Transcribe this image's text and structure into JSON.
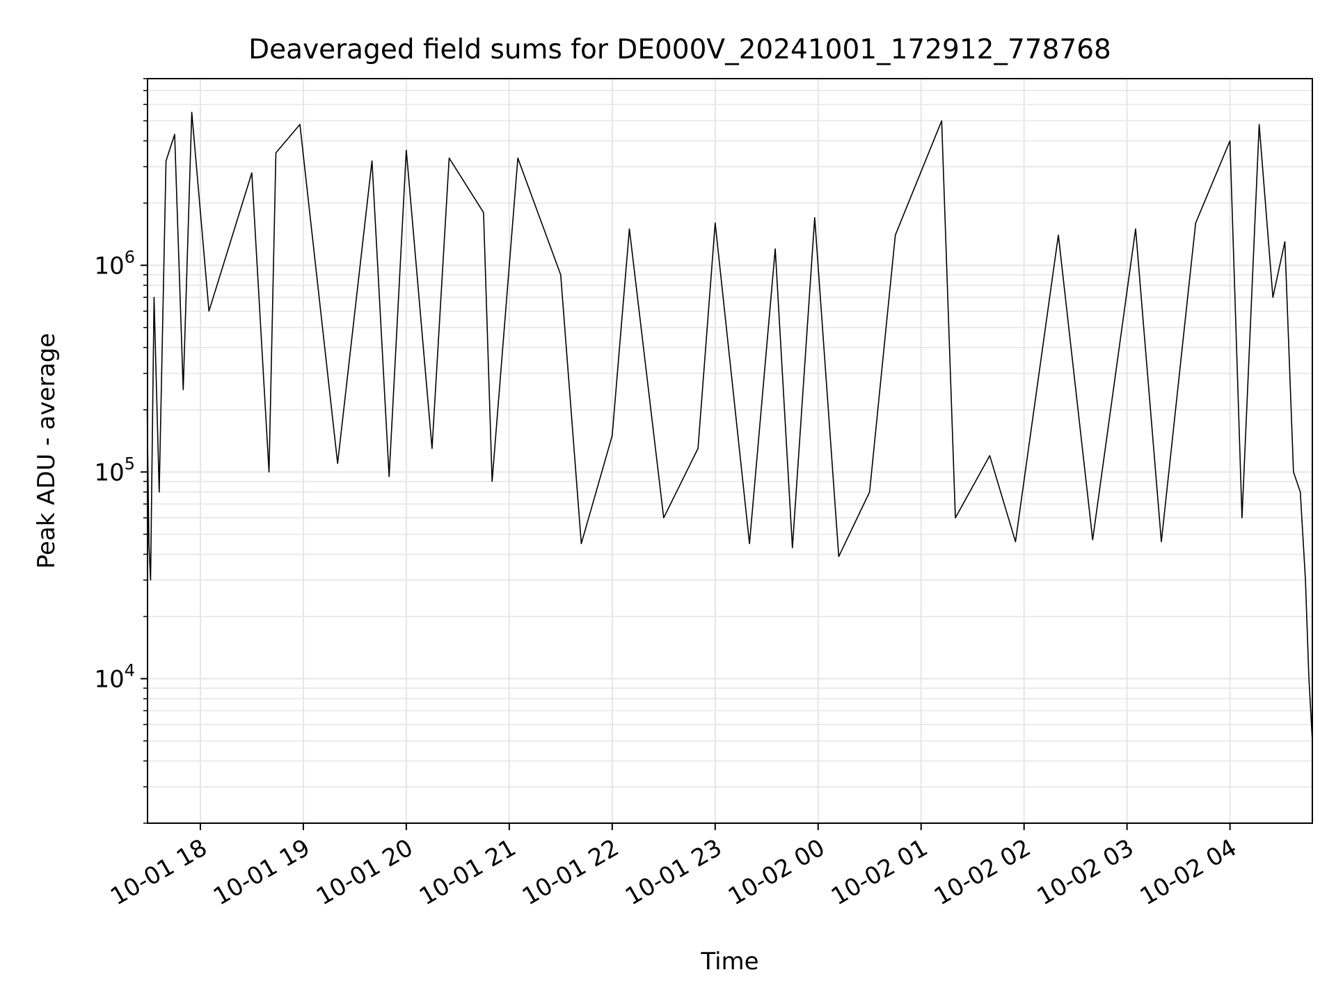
{
  "chart_data": {
    "type": "line",
    "title": "Deaveraged field sums for DE000V_20241001_172912_778768",
    "xlabel": "Time",
    "ylabel": "Peak ADU - average",
    "xscale": "time",
    "yscale": "log",
    "grid": true,
    "grid_minor_y": true,
    "xlim": [
      "2024-10-01 17:29:12",
      "2024-10-02 04:48:00"
    ],
    "ylim": [
      2000,
      8000000
    ],
    "x_ticks": [
      {
        "value": "2024-10-01 18:00",
        "label": "10-01 18"
      },
      {
        "value": "2024-10-01 19:00",
        "label": "10-01 19"
      },
      {
        "value": "2024-10-01 20:00",
        "label": "10-01 20"
      },
      {
        "value": "2024-10-01 21:00",
        "label": "10-01 21"
      },
      {
        "value": "2024-10-01 22:00",
        "label": "10-01 22"
      },
      {
        "value": "2024-10-01 23:00",
        "label": "10-01 23"
      },
      {
        "value": "2024-10-02 00:00",
        "label": "10-02 00"
      },
      {
        "value": "2024-10-02 01:00",
        "label": "10-02 01"
      },
      {
        "value": "2024-10-02 02:00",
        "label": "10-02 02"
      },
      {
        "value": "2024-10-02 03:00",
        "label": "10-02 03"
      },
      {
        "value": "2024-10-02 04:00",
        "label": "10-02 04"
      }
    ],
    "y_ticks": [
      {
        "value": 10000,
        "base": "10",
        "exp": "4"
      },
      {
        "value": 100000,
        "base": "10",
        "exp": "5"
      },
      {
        "value": 1000000,
        "base": "10",
        "exp": "6"
      }
    ],
    "series": [
      {
        "color": "#000000",
        "points": [
          [
            "2024-10-01 17:29",
            200000
          ],
          [
            "2024-10-01 17:30",
            45000
          ],
          [
            "2024-10-01 17:31",
            30000
          ],
          [
            "2024-10-01 17:33",
            700000
          ],
          [
            "2024-10-01 17:36",
            80000
          ],
          [
            "2024-10-01 17:40",
            3200000
          ],
          [
            "2024-10-01 17:45",
            4300000
          ],
          [
            "2024-10-01 17:50",
            250000
          ],
          [
            "2024-10-01 17:55",
            5500000
          ],
          [
            "2024-10-01 18:05",
            600000
          ],
          [
            "2024-10-01 18:30",
            2800000
          ],
          [
            "2024-10-01 18:40",
            100000
          ],
          [
            "2024-10-01 18:44",
            3500000
          ],
          [
            "2024-10-01 18:58",
            4800000
          ],
          [
            "2024-10-01 19:20",
            110000
          ],
          [
            "2024-10-01 19:40",
            3200000
          ],
          [
            "2024-10-01 19:50",
            95000
          ],
          [
            "2024-10-01 20:00",
            3600000
          ],
          [
            "2024-10-01 20:15",
            130000
          ],
          [
            "2024-10-01 20:25",
            3300000
          ],
          [
            "2024-10-01 20:45",
            1800000
          ],
          [
            "2024-10-01 20:50",
            90000
          ],
          [
            "2024-10-01 21:05",
            3300000
          ],
          [
            "2024-10-01 21:30",
            900000
          ],
          [
            "2024-10-01 21:42",
            45000
          ],
          [
            "2024-10-01 22:00",
            150000
          ],
          [
            "2024-10-01 22:10",
            1500000
          ],
          [
            "2024-10-01 22:30",
            60000
          ],
          [
            "2024-10-01 22:50",
            130000
          ],
          [
            "2024-10-01 23:00",
            1600000
          ],
          [
            "2024-10-01 23:20",
            45000
          ],
          [
            "2024-10-01 23:35",
            1200000
          ],
          [
            "2024-10-01 23:45",
            43000
          ],
          [
            "2024-10-01 23:58",
            1700000
          ],
          [
            "2024-10-02 00:12",
            39000
          ],
          [
            "2024-10-02 00:30",
            80000
          ],
          [
            "2024-10-02 00:45",
            1400000
          ],
          [
            "2024-10-02 01:12",
            5000000
          ],
          [
            "2024-10-02 01:20",
            60000
          ],
          [
            "2024-10-02 01:40",
            120000
          ],
          [
            "2024-10-02 01:55",
            46000
          ],
          [
            "2024-10-02 02:20",
            1400000
          ],
          [
            "2024-10-02 02:40",
            47000
          ],
          [
            "2024-10-02 03:05",
            1500000
          ],
          [
            "2024-10-02 03:20",
            46000
          ],
          [
            "2024-10-02 03:40",
            1600000
          ],
          [
            "2024-10-02 04:00",
            4000000
          ],
          [
            "2024-10-02 04:07",
            60000
          ],
          [
            "2024-10-02 04:17",
            4800000
          ],
          [
            "2024-10-02 04:25",
            700000
          ],
          [
            "2024-10-02 04:32",
            1300000
          ],
          [
            "2024-10-02 04:37",
            100000
          ],
          [
            "2024-10-02 04:41",
            80000
          ],
          [
            "2024-10-02 04:44",
            30000
          ],
          [
            "2024-10-02 04:46",
            10000
          ],
          [
            "2024-10-02 04:48",
            5000
          ]
        ]
      }
    ]
  }
}
